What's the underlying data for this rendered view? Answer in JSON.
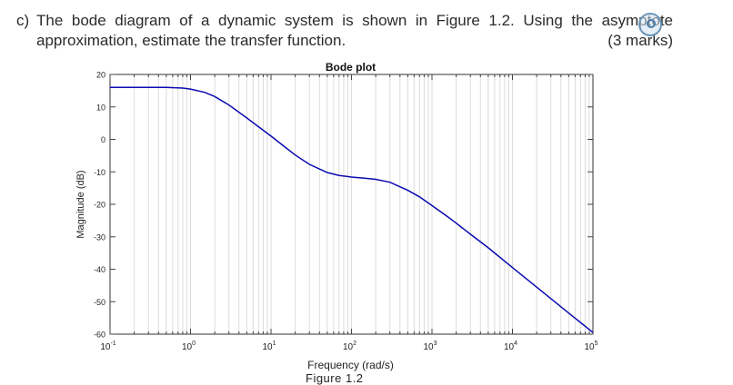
{
  "question": {
    "label": "c)",
    "line1": "The bode diagram of a dynamic system is shown in Figure 1.2. Using the asymptote",
    "line2": "approximation, estimate the transfer function.",
    "marks": "(3 marks)"
  },
  "icons": {
    "overlay": "lens-search-icon"
  },
  "figure_caption": "Figure 1.2",
  "chart_data": {
    "type": "line",
    "title": "Bode plot",
    "xlabel": "Frequency (rad/s)",
    "ylabel": "Magnitude (dB)",
    "xscale": "log",
    "xlim": [
      0.1,
      100000
    ],
    "ylim": [
      -60,
      20
    ],
    "x_ticks": [
      0.1,
      1,
      10,
      100,
      1000,
      10000,
      100000
    ],
    "x_tick_labels": [
      {
        "base": "10",
        "exp": "-1"
      },
      {
        "base": "10",
        "exp": "0"
      },
      {
        "base": "10",
        "exp": "1"
      },
      {
        "base": "10",
        "exp": "2"
      },
      {
        "base": "10",
        "exp": "3"
      },
      {
        "base": "10",
        "exp": "4"
      },
      {
        "base": "10",
        "exp": "5"
      }
    ],
    "y_ticks": [
      20,
      10,
      0,
      -10,
      -20,
      -30,
      -40,
      -50,
      -60
    ],
    "y_tick_labels": [
      "20",
      "10",
      "0",
      "-10",
      "-20",
      "-30",
      "-40",
      "-50",
      "-60"
    ],
    "grid": "x-minor",
    "series": [
      {
        "color": "#0a0ab0",
        "x": [
          0.1,
          0.2,
          0.5,
          0.8,
          1,
          1.5,
          2,
          3,
          5,
          7,
          10,
          15,
          20,
          30,
          50,
          70,
          100,
          150,
          200,
          300,
          500,
          700,
          1000,
          1500,
          2000,
          3000,
          5000,
          10000,
          20000,
          50000,
          100000
        ],
        "y": [
          16,
          16,
          16,
          15.8,
          15.5,
          14.5,
          13.2,
          10.6,
          6.6,
          3.9,
          1,
          -2.4,
          -4.8,
          -7.7,
          -10.2,
          -11.1,
          -11.6,
          -12,
          -12.3,
          -13.2,
          -15.7,
          -17.7,
          -20.4,
          -23.5,
          -25.8,
          -29.2,
          -33.4,
          -39.5,
          -45.5,
          -53.5,
          -59.5
        ]
      }
    ]
  }
}
